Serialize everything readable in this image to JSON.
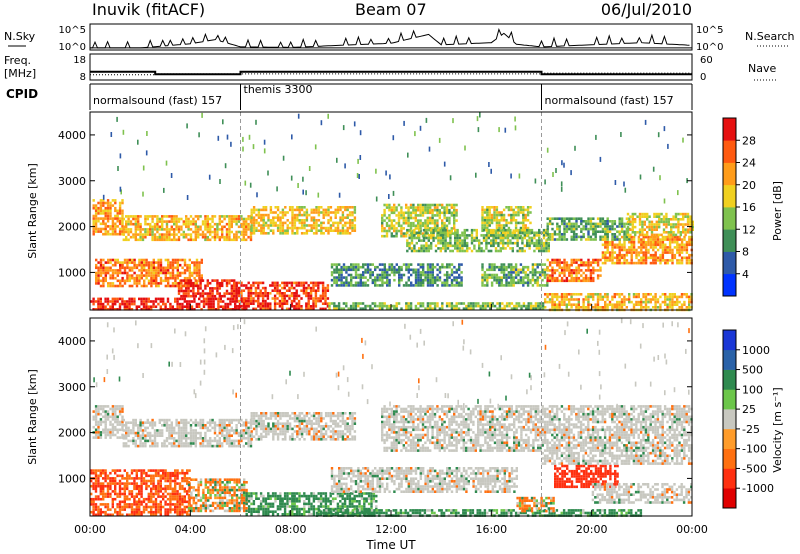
{
  "header": {
    "station": "Inuvik (fitACF)",
    "beam": "Beam 07",
    "date": "06/Jul/2010"
  },
  "sky_panel": {
    "left_label": "N.Sky",
    "right_label": "N.Search",
    "left_ticks": [
      "10^5",
      "10^0"
    ],
    "right_ticks": [
      "10^5",
      "10^0"
    ]
  },
  "freq_panel": {
    "left_label": "Freq.",
    "left_unit": "[MHz]",
    "left_ticks": [
      "18",
      "8"
    ],
    "right_label": "Nave",
    "right_ticks": [
      "60",
      "0"
    ]
  },
  "cpid": {
    "label": "CPID",
    "segments": [
      {
        "start_h": 0,
        "end_h": 6,
        "text": "normalsound (fast) 157"
      },
      {
        "start_h": 6,
        "end_h": 18,
        "text": "themis 3300"
      },
      {
        "start_h": 18,
        "end_h": 24,
        "text": "normalsound (fast) 157"
      }
    ]
  },
  "axes": {
    "xlabel": "Time UT",
    "x_ticks": [
      "00:00",
      "04:00",
      "08:00",
      "12:00",
      "16:00",
      "20:00",
      "00:00"
    ],
    "ylabel": "Slant Range [km]",
    "y_ticks": [
      "1000",
      "2000",
      "3000",
      "4000"
    ]
  },
  "power_colorbar": {
    "label": "Power [dB]",
    "ticks": [
      "4",
      "8",
      "12",
      "16",
      "20",
      "24",
      "28"
    ],
    "colors": [
      "#0033ff",
      "#2e5aa8",
      "#3f8f57",
      "#7fc24e",
      "#f0d020",
      "#ff9c1a",
      "#ff5a10",
      "#e61010"
    ]
  },
  "velocity_colorbar": {
    "label": "Velocity [m s⁻¹]",
    "ticks": [
      "1000",
      "500",
      "100",
      "25",
      "-25",
      "-100",
      "-500",
      "-1000"
    ],
    "colors": [
      "#1a37d6",
      "#2a62a8",
      "#2f8a4f",
      "#6cc64a",
      "#c8c8c0",
      "#ff9c2a",
      "#ff7010",
      "#ff3010",
      "#e00000"
    ]
  },
  "chart_data": [
    {
      "type": "line",
      "title": "N.Sky / N.Search",
      "x_range_h": [
        0,
        24
      ],
      "ylim_log10": [
        0,
        5
      ],
      "series": [
        {
          "name": "N.Sky",
          "x_h": [
            0,
            2,
            4,
            5,
            6,
            8,
            10,
            12,
            13.5,
            14,
            16,
            16.5,
            17,
            18,
            20,
            22,
            24
          ],
          "log10_values": [
            0.4,
            0.4,
            1.2,
            2.0,
            0.6,
            0.5,
            0.9,
            1.3,
            3.0,
            1.0,
            1.4,
            3.2,
            1.1,
            0.6,
            1.0,
            1.4,
            0.9
          ]
        },
        {
          "name": "N.Search",
          "x_h": [
            0,
            24
          ],
          "log10_values": [
            0,
            0
          ]
        }
      ]
    },
    {
      "type": "line",
      "title": "Freq. / Nave",
      "x_range_h": [
        0,
        24
      ],
      "ylim": [
        8,
        18
      ],
      "series": [
        {
          "name": "Freq.",
          "x_h": [
            0,
            2.6,
            2.6,
            6,
            6,
            18,
            18,
            24
          ],
          "values": [
            11.2,
            11.2,
            10.2,
            10.2,
            11.2,
            11.2,
            10.2,
            10.2
          ]
        },
        {
          "name": "Nave",
          "x_h": [
            0,
            2.6,
            2.6,
            6,
            6,
            18,
            18,
            24
          ],
          "values_0_60": [
            12,
            12,
            14,
            14,
            14,
            14,
            16,
            16
          ]
        }
      ]
    },
    {
      "type": "heatmap",
      "title": "Power [dB]",
      "xlabel": "Time UT",
      "ylabel": "Slant Range [km]",
      "x_range_h": [
        0,
        24
      ],
      "y_range_km": [
        180,
        4500
      ],
      "bands": [
        {
          "h0": 0,
          "h1": 6.2,
          "km0": 200,
          "km1": 450,
          "db": 28
        },
        {
          "h0": 0.2,
          "h1": 4.5,
          "km0": 700,
          "km1": 1300,
          "db": 22
        },
        {
          "h0": 3.5,
          "h1": 5.8,
          "km0": 500,
          "km1": 850,
          "db": 27
        },
        {
          "h0": 5.8,
          "h1": 9.5,
          "km0": 220,
          "km1": 800,
          "db": 26
        },
        {
          "h0": 0.1,
          "h1": 1.3,
          "km0": 1850,
          "km1": 2600,
          "db": 20
        },
        {
          "h0": 1.3,
          "h1": 6.4,
          "km0": 1700,
          "km1": 2250,
          "db": 18
        },
        {
          "h0": 6.4,
          "h1": 10.6,
          "km0": 1850,
          "km1": 2450,
          "db": 17
        },
        {
          "h0": 11.6,
          "h1": 14.6,
          "km0": 1800,
          "km1": 2500,
          "db": 14
        },
        {
          "h0": 15.6,
          "h1": 17.6,
          "km0": 1800,
          "km1": 2450,
          "db": 14
        },
        {
          "h0": 12.6,
          "h1": 18.3,
          "km0": 1450,
          "km1": 1950,
          "db": 12
        },
        {
          "h0": 9.6,
          "h1": 14.8,
          "km0": 700,
          "km1": 1200,
          "db": 8
        },
        {
          "h0": 15.6,
          "h1": 18.2,
          "km0": 700,
          "km1": 1200,
          "db": 10
        },
        {
          "h0": 18.1,
          "h1": 24,
          "km0": 200,
          "km1": 550,
          "db": 18
        },
        {
          "h0": 18.2,
          "h1": 20.4,
          "km0": 800,
          "km1": 1300,
          "db": 22
        },
        {
          "h0": 20.4,
          "h1": 24,
          "km0": 1200,
          "km1": 1800,
          "db": 20
        },
        {
          "h0": 18.2,
          "h1": 21.5,
          "km0": 1700,
          "km1": 2200,
          "db": 10
        },
        {
          "h0": 21.4,
          "h1": 24,
          "km0": 1800,
          "km1": 2300,
          "db": 16
        },
        {
          "h0": 9.5,
          "h1": 18.1,
          "km0": 200,
          "km1": 350,
          "db": 12
        }
      ]
    },
    {
      "type": "heatmap",
      "title": "Velocity [m s⁻¹]",
      "xlabel": "Time UT",
      "ylabel": "Slant Range [km]",
      "x_range_h": [
        0,
        24
      ],
      "y_range_km": [
        180,
        4500
      ],
      "bands": [
        {
          "h0": 0,
          "h1": 4.0,
          "km0": 200,
          "km1": 1200,
          "v": -300
        },
        {
          "h0": 3.9,
          "h1": 6.2,
          "km0": 300,
          "km1": 1000,
          "v": -60
        },
        {
          "h0": 0.1,
          "h1": 1.3,
          "km0": 1900,
          "km1": 2600,
          "v": 0
        },
        {
          "h0": 1.3,
          "h1": 6.4,
          "km0": 1700,
          "km1": 2300,
          "v": 0
        },
        {
          "h0": 6.4,
          "h1": 10.6,
          "km0": 1850,
          "km1": 2450,
          "v": 0
        },
        {
          "h0": 6.2,
          "h1": 11.4,
          "km0": 200,
          "km1": 700,
          "v": 150
        },
        {
          "h0": 11.6,
          "h1": 18.0,
          "km0": 1600,
          "km1": 2600,
          "v": 0
        },
        {
          "h0": 9.6,
          "h1": 17.0,
          "km0": 700,
          "km1": 1250,
          "v": 0
        },
        {
          "h0": 18.5,
          "h1": 21.0,
          "km0": 800,
          "km1": 1300,
          "v": -500
        },
        {
          "h0": 18.0,
          "h1": 24,
          "km0": 1300,
          "km1": 2600,
          "v": 0
        },
        {
          "h0": 20.0,
          "h1": 24,
          "km0": 500,
          "km1": 900,
          "v": 0
        },
        {
          "h0": 9.0,
          "h1": 22.0,
          "km0": 200,
          "km1": 330,
          "v": 150
        },
        {
          "h0": 17.0,
          "h1": 18.5,
          "km0": 300,
          "km1": 600,
          "v": -60
        }
      ]
    }
  ]
}
